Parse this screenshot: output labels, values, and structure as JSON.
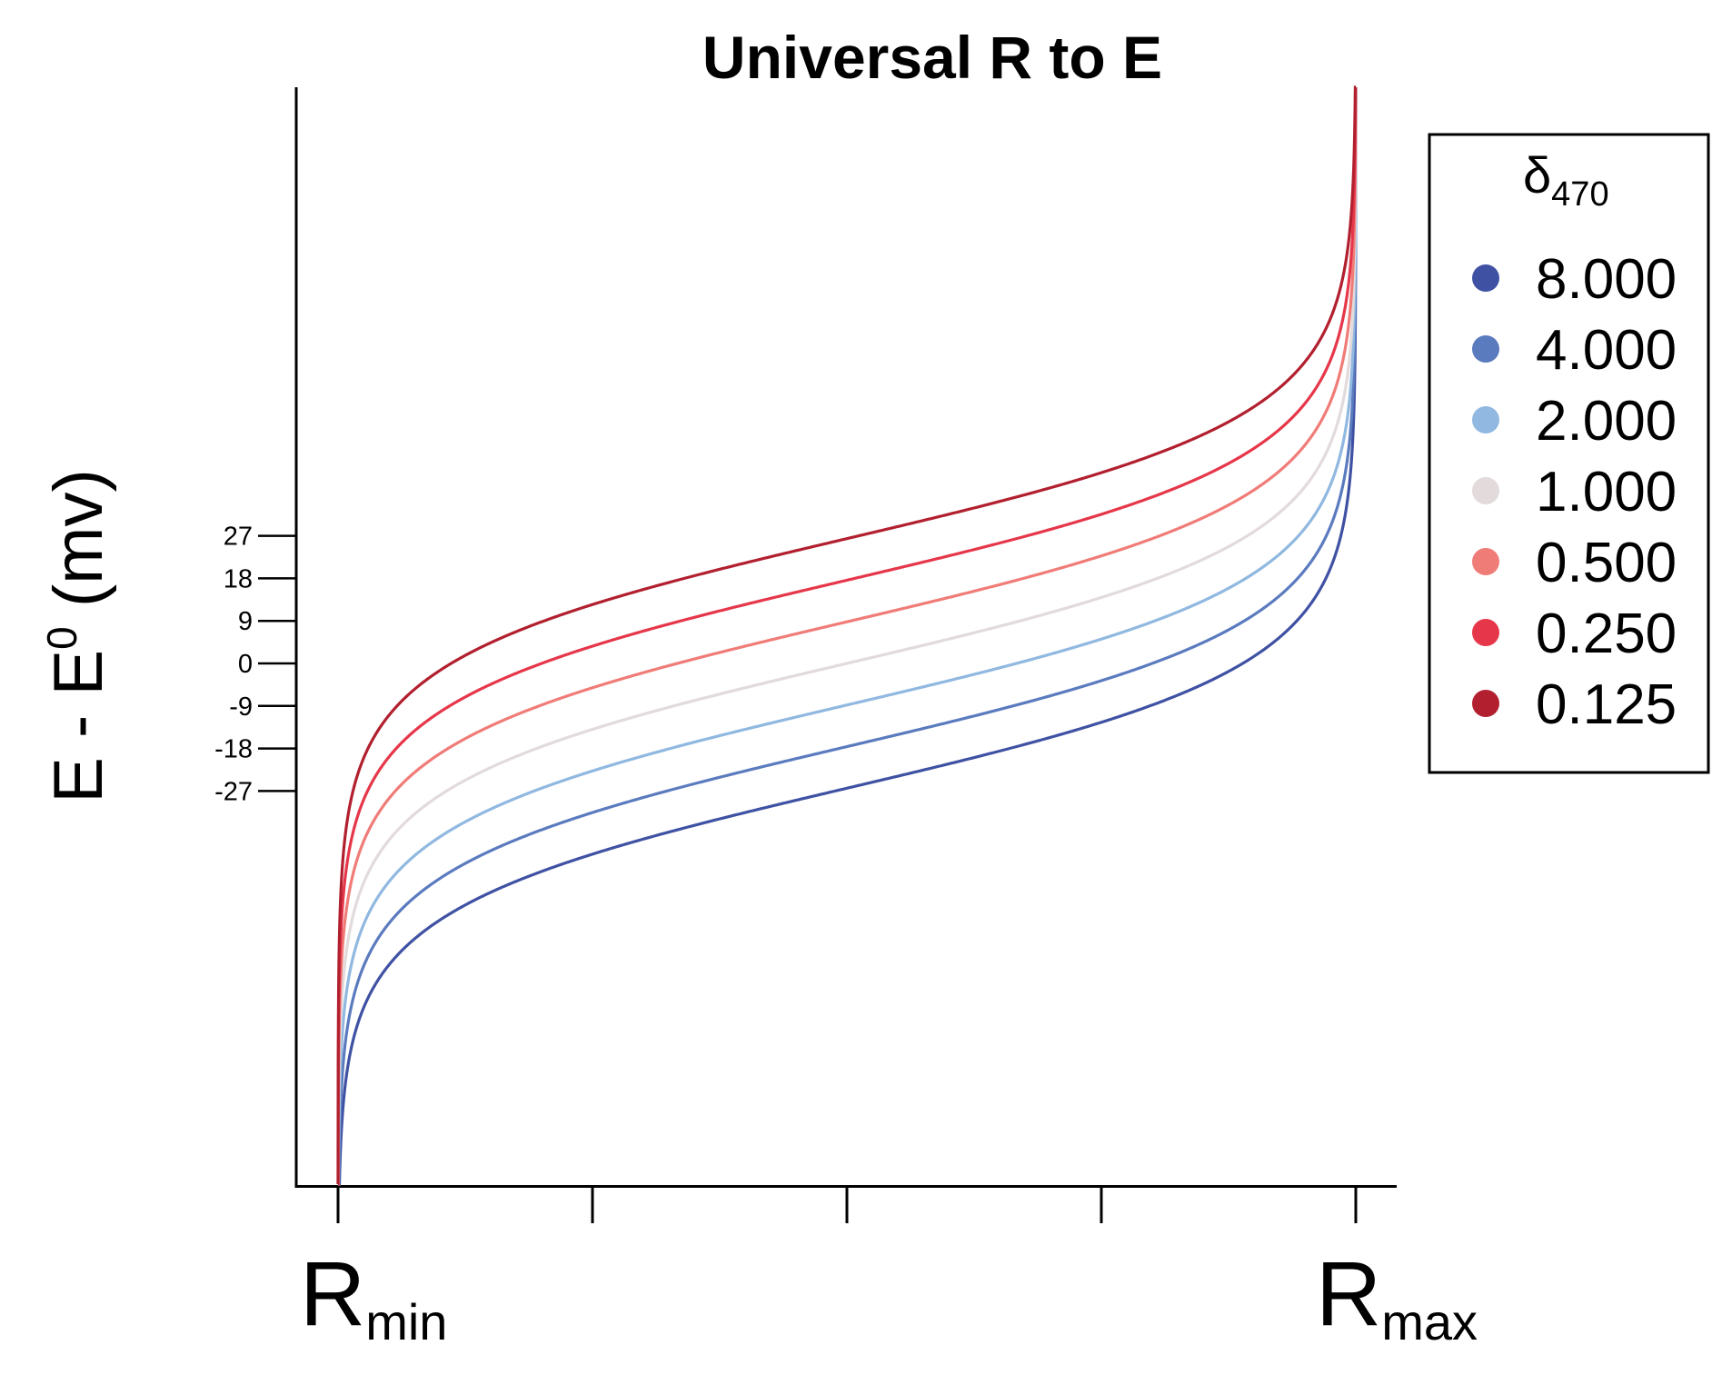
{
  "chart_data": {
    "type": "line",
    "title": "Universal R to E",
    "ylabel": {
      "main": "E - E",
      "superscript": "0",
      "unit": " (mv)"
    },
    "x_categories": [
      {
        "main": "R",
        "sub": "min"
      },
      {
        "main": "R",
        "sub": "max"
      }
    ],
    "x_range": [
      0,
      1
    ],
    "ylim": [
      -90,
      90
    ],
    "yticks": [
      -27,
      -18,
      -9,
      0,
      9,
      18,
      27
    ],
    "grid": false,
    "legend": {
      "title_main": "δ",
      "title_sub": "470",
      "placement": "right"
    },
    "function": "E - E0 = 12.7 * ln((R - Rmin) / (delta * (Rmax - R)))",
    "series": [
      {
        "name": "8.000",
        "delta": 8.0,
        "color": "#3f51a3"
      },
      {
        "name": "4.000",
        "delta": 4.0,
        "color": "#5b7bbf"
      },
      {
        "name": "2.000",
        "delta": 2.0,
        "color": "#90b8e0"
      },
      {
        "name": "1.000",
        "delta": 1.0,
        "color": "#e2dadb"
      },
      {
        "name": "0.500",
        "delta": 0.5,
        "color": "#f07c78"
      },
      {
        "name": "0.250",
        "delta": 0.25,
        "color": "#e6374a"
      },
      {
        "name": "0.125",
        "delta": 0.125,
        "color": "#b2202f"
      }
    ]
  }
}
